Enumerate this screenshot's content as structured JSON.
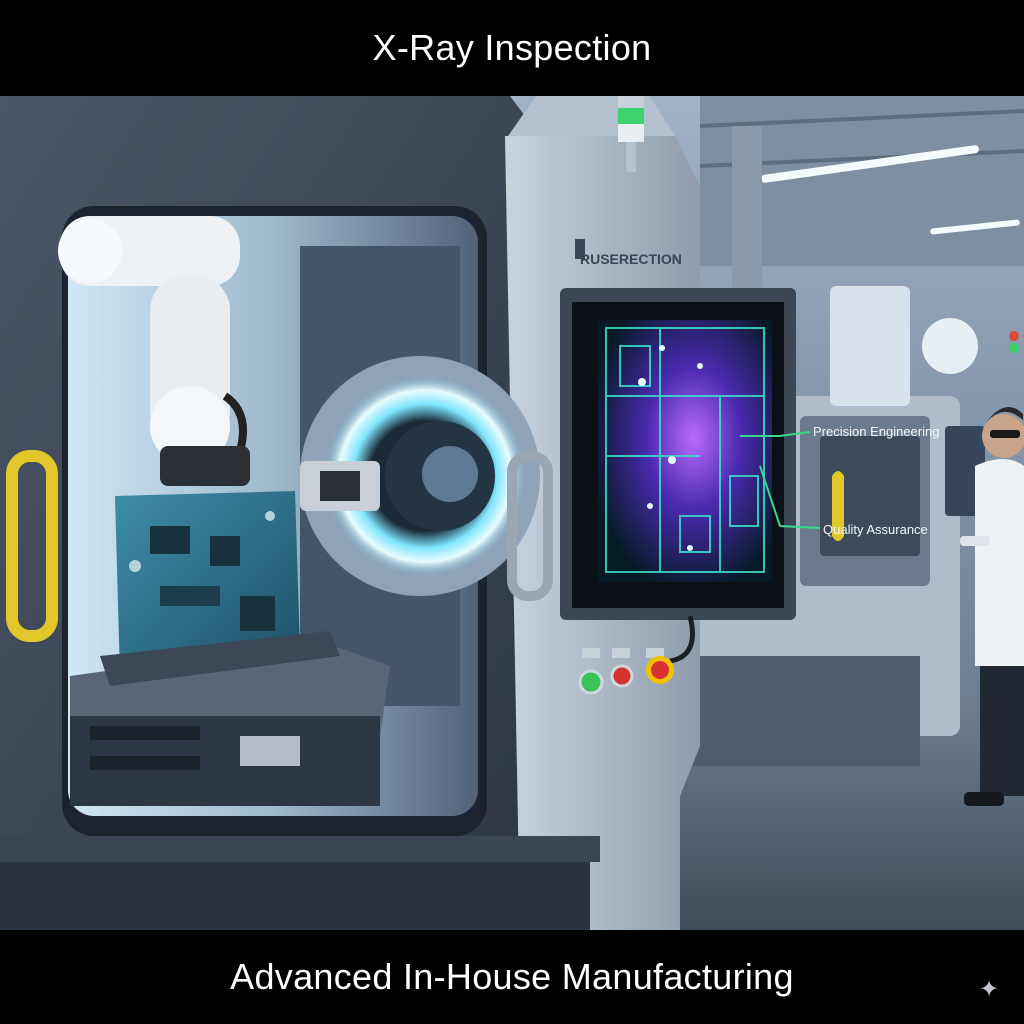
{
  "header": {
    "title": "X-Ray Inspection"
  },
  "footer": {
    "caption": "Advanced In-House Manufacturing"
  },
  "machine": {
    "brand_label": "RUSERECTION"
  },
  "monitor": {
    "annotations": [
      {
        "label": "Precision Engineering"
      },
      {
        "label": "Quality Assurance"
      }
    ]
  },
  "icons": {
    "corner_mark": "sparkle-icon",
    "corner_glyph": "✦"
  },
  "colors": {
    "caption_bars": "#000000",
    "caption_text": "#ffffff",
    "xray_glow": "#7fe6ff",
    "scan_cyan": "#39e3c9",
    "scan_violet": "#8a3cff",
    "handle_yellow": "#e2c72a",
    "button_green": "#39c35a",
    "button_red": "#d8312f",
    "estop_yellow": "#f2c200"
  }
}
